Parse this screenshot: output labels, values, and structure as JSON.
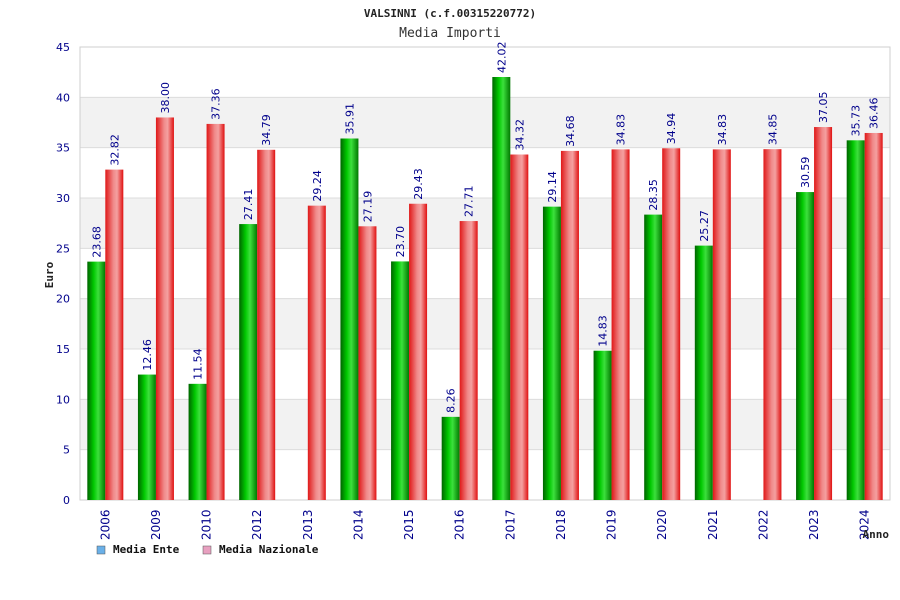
{
  "chart_data": {
    "type": "bar",
    "title": "VALSINNI (c.f.00315220772)",
    "subtitle": "Media Importi",
    "xlabel": "Anno",
    "ylabel": "Euro",
    "ylim": [
      0,
      45
    ],
    "yticks": [
      0,
      5,
      10,
      15,
      20,
      25,
      30,
      35,
      40,
      45
    ],
    "grid": true,
    "legend_position": "bottom-left",
    "categories": [
      "2006",
      "2009",
      "2010",
      "2012",
      "2013",
      "2014",
      "2015",
      "2016",
      "2017",
      "2018",
      "2019",
      "2020",
      "2021",
      "2022",
      "2023",
      "2024"
    ],
    "series": [
      {
        "name": "Media Ente",
        "color": "#00a000",
        "legend_color": "#6ab0e8",
        "values": [
          23.68,
          12.46,
          11.54,
          27.41,
          null,
          35.91,
          23.7,
          8.26,
          42.02,
          29.14,
          14.83,
          28.35,
          25.27,
          null,
          30.59,
          35.73
        ],
        "labels": [
          "23.68",
          "12.46",
          "11.54",
          "27.41",
          null,
          "35.91",
          "23.70",
          "8.26",
          "42.02",
          "29.14",
          "14.83",
          "28.35",
          "25.27",
          null,
          "30.59",
          "35.73"
        ]
      },
      {
        "name": "Media Nazionale",
        "color": "#e00000",
        "legend_color": "#e8a0c0",
        "values": [
          32.82,
          38.0,
          37.36,
          34.79,
          29.24,
          27.19,
          29.43,
          27.71,
          34.32,
          34.68,
          34.83,
          34.94,
          34.83,
          34.85,
          37.05,
          36.46
        ],
        "labels": [
          "32.82",
          "38.00",
          "37.36",
          "34.79",
          "29.24",
          "27.19",
          "29.43",
          "27.71",
          "34.32",
          "34.68",
          "34.83",
          "34.94",
          "34.83",
          "34.85",
          "37.05",
          "36.46"
        ]
      }
    ]
  }
}
